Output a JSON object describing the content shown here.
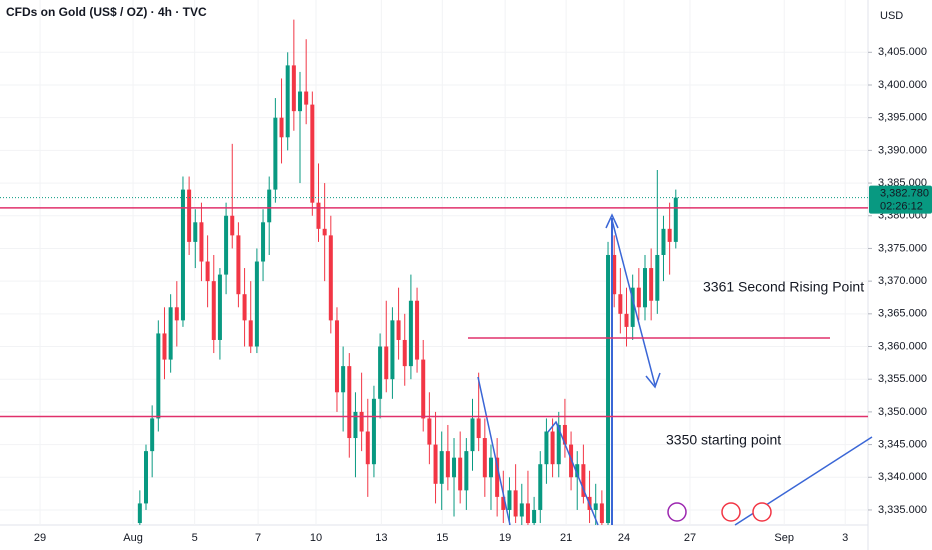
{
  "chart_data": {
    "type": "candlestick",
    "title": "CFDs on Gold (US$ / OZ) · 4h · TVC",
    "currency": "USD",
    "up_color": "#089981",
    "down_color": "#f23645",
    "x": [
      0,
      1,
      2,
      3,
      4,
      5,
      6,
      7,
      8,
      9,
      10,
      11,
      12,
      13,
      14,
      15,
      16,
      17,
      18,
      19,
      20,
      21,
      22,
      23,
      24,
      25,
      26,
      27,
      28,
      29,
      30,
      31,
      32,
      33,
      34,
      35,
      36,
      37,
      38,
      39,
      40,
      41,
      42,
      43,
      44,
      45,
      46,
      47,
      48,
      49,
      50,
      51,
      52,
      53,
      54,
      55,
      56,
      57,
      58,
      59,
      60,
      61,
      62,
      63,
      64,
      65,
      66,
      67,
      68,
      69,
      70,
      71,
      72,
      73,
      74,
      75,
      76,
      77,
      78,
      79,
      80,
      81,
      82,
      83,
      84,
      85,
      86,
      87
    ],
    "open": [
      3333,
      3336,
      3344,
      3349,
      3362,
      3358,
      3366,
      3364,
      3384,
      3376,
      3379,
      3373,
      3370,
      3361,
      3371,
      3380,
      3377,
      3368,
      3364,
      3360,
      3373,
      3379,
      3384,
      3395,
      3392,
      3403,
      3396,
      3399,
      3397,
      3382,
      3378,
      3377,
      3364,
      3353,
      3357,
      3346,
      3350,
      3347,
      3342,
      3352,
      3360,
      3355,
      3364,
      3361,
      3357,
      3367,
      3358,
      3349,
      3345,
      3339,
      3344,
      3340,
      3343,
      3338,
      3344,
      3349,
      3346,
      3340,
      3343,
      3337,
      3335,
      3338,
      3334,
      3336,
      3333,
      3335,
      3342,
      3347,
      3342,
      3348,
      3345,
      3340,
      3342,
      3337,
      3335,
      3336,
      3333,
      3374,
      3368,
      3365,
      3363,
      3369,
      3366,
      3372,
      3367,
      3374,
      3378,
      3376
    ],
    "high": [
      3338,
      3345,
      3351,
      3364,
      3366,
      3368,
      3370,
      3386,
      3386,
      3381,
      3382,
      3377,
      3374,
      3372,
      3382,
      3391,
      3379,
      3372,
      3370,
      3375,
      3381,
      3386,
      3398,
      3401,
      3405,
      3410,
      3402,
      3407,
      3399,
      3388,
      3385,
      3380,
      3366,
      3360,
      3359,
      3353,
      3356,
      3352,
      3354,
      3362,
      3367,
      3366,
      3369,
      3365,
      3371,
      3369,
      3361,
      3353,
      3350,
      3347,
      3348,
      3346,
      3347,
      3346,
      3352,
      3356,
      3349,
      3345,
      3346,
      3341,
      3340,
      3342,
      3339,
      3341,
      3337,
      3344,
      3349,
      3349,
      3350,
      3352,
      3347,
      3344,
      3345,
      3341,
      3339,
      3338,
      3376,
      3377,
      3372,
      3369,
      3371,
      3372,
      3374,
      3375,
      3387,
      3380,
      3382,
      3384
    ],
    "low": [
      3332,
      3335,
      3340,
      3347,
      3355,
      3356,
      3360,
      3363,
      3374,
      3372,
      3370,
      3366,
      3359,
      3358,
      3368,
      3375,
      3366,
      3360,
      3359,
      3359,
      3370,
      3374,
      3382,
      3388,
      3390,
      3393,
      3385,
      3394,
      3380,
      3376,
      3370,
      3362,
      3350,
      3347,
      3343,
      3340,
      3344,
      3337,
      3340,
      3349,
      3353,
      3352,
      3358,
      3354,
      3355,
      3356,
      3347,
      3342,
      3336,
      3335,
      3338,
      3334,
      3336,
      3335,
      3341,
      3344,
      3337,
      3335,
      3334,
      3333,
      3332,
      3333,
      3331,
      3332,
      3330,
      3333,
      3339,
      3340,
      3340,
      3343,
      3338,
      3335,
      3336,
      3333,
      3332,
      3331,
      3332,
      3366,
      3362,
      3360,
      3361,
      3364,
      3364,
      3364,
      3365,
      3370,
      3371,
      3375
    ],
    "close": [
      3336,
      3344,
      3349,
      3362,
      3358,
      3366,
      3364,
      3384,
      3376,
      3379,
      3373,
      3370,
      3361,
      3371,
      3380,
      3377,
      3368,
      3364,
      3360,
      3373,
      3379,
      3384,
      3395,
      3392,
      3403,
      3396,
      3399,
      3397,
      3382,
      3378,
      3377,
      3364,
      3353,
      3357,
      3346,
      3350,
      3347,
      3342,
      3352,
      3360,
      3355,
      3364,
      3361,
      3357,
      3367,
      3358,
      3349,
      3345,
      3339,
      3344,
      3340,
      3343,
      3338,
      3344,
      3349,
      3346,
      3340,
      3343,
      3337,
      3335,
      3338,
      3334,
      3336,
      3333,
      3335,
      3342,
      3347,
      3342,
      3348,
      3345,
      3340,
      3342,
      3337,
      3335,
      3336,
      3333,
      3374,
      3368,
      3365,
      3363,
      3369,
      3366,
      3372,
      3367,
      3374,
      3378,
      3376,
      3382.78
    ],
    "xlim": [
      -22.7,
      118.2
    ],
    "ylim": [
      3332.7,
      3413
    ],
    "xticks": [
      {
        "value": -16.2,
        "label": "29"
      },
      {
        "value": -1.1,
        "label": "Aug"
      },
      {
        "value": 8.9,
        "label": "5"
      },
      {
        "value": 19.2,
        "label": "7"
      },
      {
        "value": 28.6,
        "label": "10"
      },
      {
        "value": 39.2,
        "label": "13"
      },
      {
        "value": 49.1,
        "label": "15"
      },
      {
        "value": 59.3,
        "label": "19"
      },
      {
        "value": 69.2,
        "label": "21"
      },
      {
        "value": 78.6,
        "label": "24"
      },
      {
        "value": 89.3,
        "label": "27"
      },
      {
        "value": 104.6,
        "label": "Sep"
      },
      {
        "value": 114.5,
        "label": "3"
      }
    ],
    "yticks": [
      {
        "value": 3335,
        "label": "3,335.000"
      },
      {
        "value": 3340,
        "label": "3,340.000"
      },
      {
        "value": 3345,
        "label": "3,345.000"
      },
      {
        "value": 3350,
        "label": "3,350.000"
      },
      {
        "value": 3355,
        "label": "3,355.000"
      },
      {
        "value": 3360,
        "label": "3,360.000"
      },
      {
        "value": 3365,
        "label": "3,365.000"
      },
      {
        "value": 3370,
        "label": "3,370.000"
      },
      {
        "value": 3375,
        "label": "3,375.000"
      },
      {
        "value": 3380,
        "label": "3,380.000"
      },
      {
        "value": 3385,
        "label": "3,385.000"
      },
      {
        "value": 3390,
        "label": "3,390.000"
      },
      {
        "value": 3395,
        "label": "3,395.000"
      },
      {
        "value": 3400,
        "label": "3,400.000"
      },
      {
        "value": 3405,
        "label": "3,405.000"
      }
    ],
    "last_price": {
      "value": 3382.78,
      "label": "3,382.780"
    },
    "countdown": "02:26:12",
    "hlines": [
      3381.2,
      3349.3,
      3361.3
    ],
    "hline_color": "#e0306b",
    "annotations": [
      "3361 Second Rising Point",
      "3350 starting point"
    ]
  }
}
